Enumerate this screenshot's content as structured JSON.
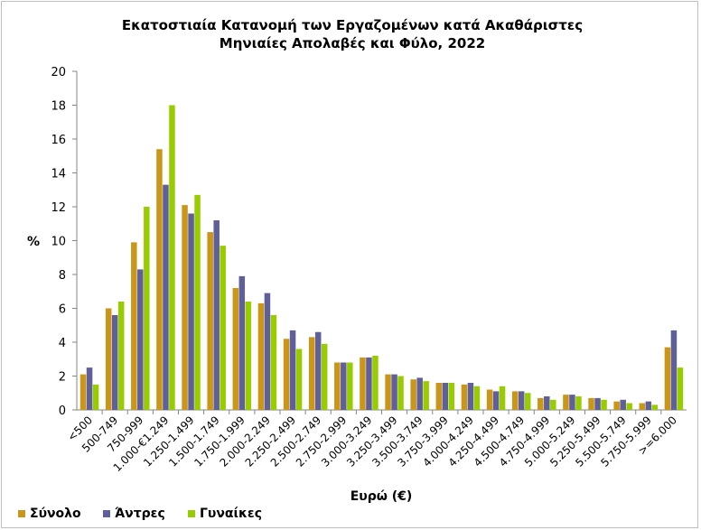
{
  "chart_data": {
    "type": "bar",
    "title_line1": "Εκατοστιαία Κατανομή των Εργαζομένων κατά Ακαθάριστες",
    "title_line2": "Μηνιαίες Απολαβές και Φύλο, 2022",
    "xlabel": "Ευρώ (€)",
    "ylabel": "%",
    "ylim": [
      0,
      20
    ],
    "yticks": [
      "0",
      "2",
      "4",
      "6",
      "8",
      "10",
      "12",
      "14",
      "16",
      "18",
      "20"
    ],
    "grid": false,
    "legend_placement": "bottom-left",
    "categories": [
      "<500",
      "500-749",
      "750-999",
      "1.000-€1.249",
      "1.250-1.499",
      "1.500-1.749",
      "1.750-1.999",
      "2.000-2.249",
      "2.250-2.499",
      "2.500-2.749",
      "2.750-2.999",
      "3.000-3.249",
      "3.250-3.499",
      "3.500-3.749",
      "3.750-3.999",
      "4.000-4.249",
      "4.250-4.499",
      "4.500-4.749",
      "4.750-4.999",
      "5.000-5.249",
      "5.250-5.499",
      "5.500-5.749",
      "5.750-5.999",
      ">=6.000"
    ],
    "series": [
      {
        "name": "Σύνολο",
        "color": "#C9961A",
        "values": [
          2.1,
          6.0,
          9.9,
          15.4,
          12.1,
          10.5,
          7.2,
          6.3,
          4.2,
          4.3,
          2.8,
          3.1,
          2.1,
          1.8,
          1.6,
          1.5,
          1.2,
          1.1,
          0.7,
          0.9,
          0.7,
          0.5,
          0.4,
          3.7
        ]
      },
      {
        "name": "Άντρες",
        "color": "#5F5F99",
        "values": [
          2.5,
          5.6,
          8.3,
          13.3,
          11.6,
          11.2,
          7.9,
          6.9,
          4.7,
          4.6,
          2.8,
          3.1,
          2.1,
          1.9,
          1.6,
          1.6,
          1.1,
          1.1,
          0.8,
          0.9,
          0.7,
          0.6,
          0.5,
          4.7
        ]
      },
      {
        "name": "Γυναίκες",
        "color": "#99CC00",
        "values": [
          1.5,
          6.4,
          12.0,
          18.0,
          12.7,
          9.7,
          6.4,
          5.6,
          3.6,
          3.9,
          2.8,
          3.2,
          2.0,
          1.7,
          1.6,
          1.4,
          1.4,
          1.0,
          0.6,
          0.8,
          0.6,
          0.4,
          0.3,
          2.5
        ]
      }
    ]
  }
}
